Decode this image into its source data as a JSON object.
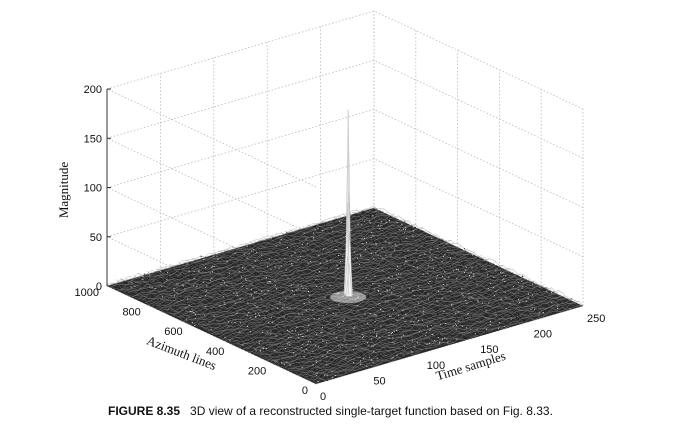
{
  "chart_data": {
    "type": "surface",
    "title": "",
    "xlabel": "Time samples",
    "ylabel": "Azimuth lines",
    "zlabel": "Magnitude",
    "xlim": [
      0,
      250
    ],
    "ylim": [
      0,
      1000
    ],
    "zlim": [
      0,
      200
    ],
    "xticks": [
      "0",
      "50",
      "100",
      "150",
      "200",
      "250"
    ],
    "yticks": [
      "0",
      "200",
      "400",
      "600",
      "800",
      "1000"
    ],
    "zticks": [
      "0",
      "50",
      "100",
      "150",
      "200"
    ],
    "grid": true,
    "noise_floor_max": 4,
    "series": [
      {
        "peak": {
          "x": 128,
          "y": 500,
          "z": 188
        }
      }
    ]
  },
  "caption": {
    "figure_label": "FIGURE 8.35",
    "text": "3D view of a reconstructed single-target function based on Fig. 8.33."
  }
}
